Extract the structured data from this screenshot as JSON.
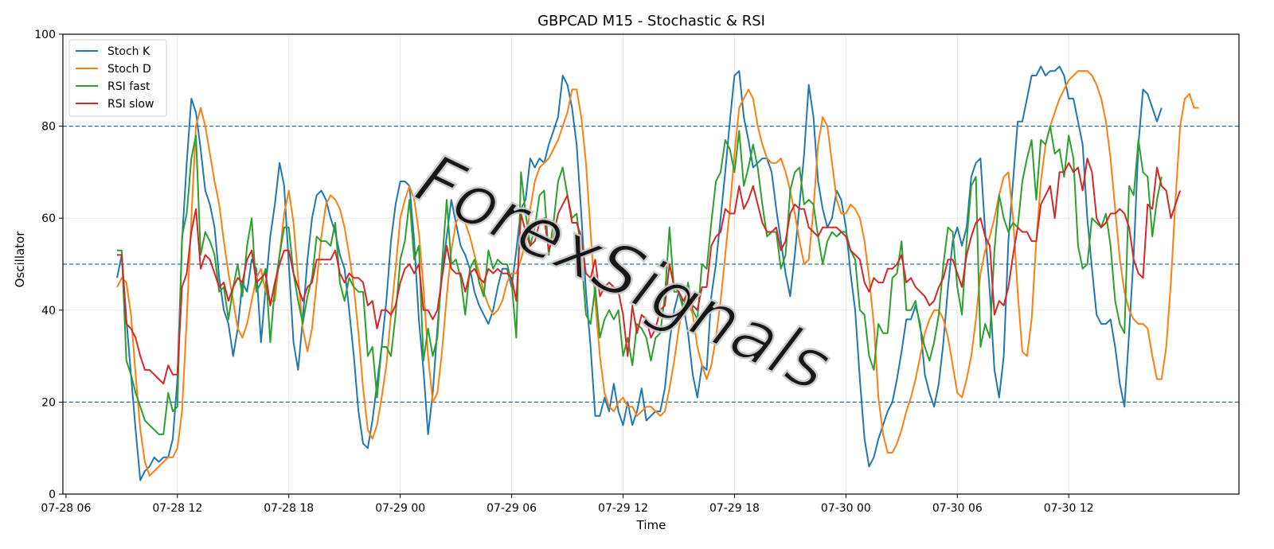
{
  "chart_data": {
    "type": "line",
    "title": "GBPCAD M15 - Stochastic & RSI",
    "xlabel": "Time",
    "ylabel": "Oscillator",
    "ylim": [
      0,
      100
    ],
    "yticks": [
      0,
      20,
      40,
      60,
      80,
      100
    ],
    "xlim": [
      "2025-07-28 05:50",
      "2025-07-30 21:10"
    ],
    "xticks": [
      {
        "t": "2025-07-28 06:00",
        "label": "07-28 06"
      },
      {
        "t": "2025-07-28 12:00",
        "label": "07-28 12"
      },
      {
        "t": "2025-07-28 18:00",
        "label": "07-28 18"
      },
      {
        "t": "2025-07-29 00:00",
        "label": "07-29 00"
      },
      {
        "t": "2025-07-29 06:00",
        "label": "07-29 06"
      },
      {
        "t": "2025-07-29 12:00",
        "label": "07-29 12"
      },
      {
        "t": "2025-07-29 18:00",
        "label": "07-29 18"
      },
      {
        "t": "2025-07-30 00:00",
        "label": "07-30 00"
      },
      {
        "t": "2025-07-30 06:00",
        "label": "07-30 06"
      },
      {
        "t": "2025-07-30 12:00",
        "label": "07-30 12"
      }
    ],
    "hlines": [
      {
        "y": 80,
        "style": "dashed",
        "color": "#1f77b4"
      },
      {
        "y": 50,
        "style": "dashed",
        "color": "#1f77b4"
      },
      {
        "y": 20,
        "style": "dashed",
        "color": "#1f77b4"
      }
    ],
    "grid": true,
    "legend_position": "top-left",
    "watermark": "ForexSignals",
    "x_start": "2025-07-28 08:45",
    "x_step_minutes": 15,
    "series": [
      {
        "name": "Stoch K",
        "color": "#1f77b4",
        "values": [
          47,
          52,
          38,
          26,
          14,
          3,
          5,
          6,
          8,
          7,
          8,
          8,
          12,
          25,
          55,
          72,
          86,
          83,
          75,
          66,
          63,
          58,
          47,
          40,
          37,
          30,
          36,
          46,
          44,
          51,
          49,
          33,
          45,
          56,
          63,
          72,
          67,
          50,
          33,
          27,
          38,
          51,
          60,
          65,
          66,
          64,
          60,
          57,
          52,
          49,
          40,
          30,
          18,
          11,
          10,
          16,
          24,
          32,
          42,
          55,
          63,
          68,
          68,
          67,
          55,
          38,
          27,
          13,
          22,
          36,
          48,
          56,
          64,
          59,
          54,
          52,
          49,
          44,
          41,
          39,
          37,
          40,
          45,
          49,
          49,
          45,
          53,
          62,
          64,
          73,
          71,
          73,
          72,
          76,
          79,
          82,
          91,
          89,
          84,
          76,
          61,
          44,
          32,
          17,
          17,
          21,
          18,
          24,
          18,
          15,
          20,
          15,
          18,
          23,
          16,
          17,
          18,
          18,
          23,
          33,
          40,
          44,
          41,
          35,
          26,
          21,
          28,
          27,
          43,
          50,
          60,
          70,
          81,
          91,
          92,
          82,
          77,
          71,
          72,
          73,
          73,
          70,
          62,
          55,
          48,
          43,
          52,
          63,
          74,
          89,
          82,
          68,
          62,
          58,
          60,
          66,
          64,
          58,
          48,
          40,
          25,
          12,
          6,
          8,
          12,
          15,
          18,
          20,
          25,
          31,
          38,
          38,
          41,
          37,
          26,
          22,
          19,
          24,
          33,
          45,
          55,
          58,
          54,
          58,
          69,
          72,
          73,
          57,
          44,
          27,
          21,
          30,
          55,
          68,
          81,
          81,
          86,
          91,
          91,
          93,
          91,
          92,
          92,
          93,
          91,
          86,
          86,
          81,
          76,
          60,
          49,
          39,
          37,
          37,
          38,
          32,
          24,
          19,
          35,
          52,
          76,
          88,
          87,
          84,
          81,
          84
        ]
      },
      {
        "name": "Stoch D",
        "color": "#ff7f0e",
        "values": [
          45,
          47,
          46,
          39,
          26,
          14,
          7,
          4,
          5,
          6,
          7,
          8,
          8,
          10,
          18,
          38,
          60,
          80,
          84,
          80,
          74,
          68,
          63,
          55,
          48,
          42,
          36,
          34,
          37,
          42,
          47,
          49,
          44,
          42,
          42,
          52,
          61,
          66,
          59,
          47,
          36,
          31,
          36,
          46,
          56,
          63,
          65,
          64,
          62,
          58,
          52,
          45,
          35,
          23,
          14,
          12,
          15,
          21,
          28,
          39,
          49,
          60,
          64,
          67,
          64,
          57,
          45,
          30,
          20,
          22,
          31,
          43,
          53,
          59,
          61,
          59,
          56,
          52,
          48,
          44,
          41,
          39,
          40,
          42,
          46,
          48,
          48,
          51,
          55,
          62,
          68,
          71,
          72,
          73,
          75,
          77,
          80,
          83,
          88,
          88,
          82,
          72,
          57,
          42,
          30,
          22,
          19,
          18,
          20,
          21,
          19,
          19,
          17,
          18,
          19,
          19,
          18,
          17,
          18,
          23,
          29,
          36,
          41,
          42,
          39,
          32,
          28,
          25,
          28,
          34,
          42,
          52,
          62,
          74,
          84,
          86,
          88,
          86,
          80,
          76,
          73,
          72,
          72,
          73,
          70,
          66,
          61,
          55,
          50,
          51,
          62,
          76,
          82,
          80,
          72,
          64,
          61,
          61,
          63,
          62,
          60,
          55,
          47,
          37,
          21,
          13,
          9,
          9,
          11,
          14,
          18,
          21,
          25,
          30,
          35,
          38,
          40,
          40,
          38,
          34,
          28,
          22,
          21,
          25,
          30,
          38,
          48,
          53,
          56,
          60,
          65,
          69,
          70,
          60,
          44,
          31,
          30,
          38,
          55,
          68,
          76,
          80,
          83,
          86,
          88,
          90,
          91,
          92,
          92,
          92,
          91,
          89,
          86,
          81,
          73,
          62,
          51,
          44,
          40,
          38,
          37,
          37,
          36,
          30,
          25,
          25,
          32,
          46,
          64,
          80,
          86,
          87,
          84,
          84
        ]
      },
      {
        "name": "RSI fast",
        "color": "#2ca02c",
        "values": [
          53,
          53,
          29,
          26,
          22,
          19,
          16,
          15,
          14,
          13,
          13,
          22,
          18,
          19,
          56,
          61,
          73,
          78,
          52,
          57,
          55,
          52,
          44,
          45,
          38,
          45,
          50,
          43,
          54,
          60,
          44,
          46,
          49,
          33,
          45,
          52,
          58,
          58,
          48,
          42,
          37,
          43,
          47,
          56,
          55,
          55,
          54,
          59,
          46,
          42,
          47,
          45,
          44,
          44,
          30,
          32,
          21,
          32,
          32,
          30,
          39,
          51,
          55,
          64,
          51,
          54,
          29,
          36,
          30,
          34,
          50,
          64,
          50,
          51,
          47,
          39,
          49,
          51,
          46,
          43,
          53,
          49,
          51,
          50,
          50,
          46,
          34,
          70,
          61,
          54,
          58,
          65,
          66,
          52,
          59,
          68,
          71,
          65,
          60,
          61,
          52,
          39,
          37,
          45,
          34,
          38,
          40,
          38,
          40,
          30,
          34,
          28,
          37,
          36,
          34,
          29,
          34,
          35,
          43,
          58,
          44,
          44,
          40,
          46,
          40,
          38,
          50,
          49,
          59,
          68,
          70,
          77,
          75,
          70,
          79,
          67,
          71,
          76,
          71,
          63,
          56,
          57,
          57,
          49,
          52,
          66,
          70,
          71,
          63,
          64,
          63,
          56,
          50,
          55,
          57,
          56,
          57,
          57,
          53,
          51,
          40,
          39,
          30,
          27,
          37,
          35,
          35,
          47,
          48,
          55,
          40,
          40,
          42,
          36,
          32,
          29,
          33,
          39,
          50,
          58,
          57,
          45,
          39,
          55,
          67,
          69,
          32,
          37,
          34,
          53,
          65,
          60,
          57,
          59,
          58,
          68,
          73,
          77,
          64,
          77,
          76,
          80,
          74,
          75,
          69,
          78,
          73,
          54,
          49,
          50,
          60,
          59,
          58,
          61,
          54,
          42,
          37,
          35,
          67,
          65,
          77,
          70,
          69,
          56,
          64,
          69
        ]
      },
      {
        "name": "RSI slow",
        "color": "#d62728",
        "values": [
          52,
          52,
          37,
          36,
          34,
          30,
          27,
          27,
          26,
          25,
          24,
          28,
          26,
          26,
          45,
          48,
          57,
          62,
          49,
          52,
          51,
          48,
          45,
          46,
          42,
          45,
          47,
          46,
          51,
          53,
          46,
          47,
          48,
          41,
          46,
          50,
          53,
          53,
          48,
          45,
          42,
          45,
          46,
          51,
          51,
          51,
          51,
          53,
          48,
          46,
          48,
          47,
          47,
          46,
          41,
          42,
          36,
          40,
          40,
          39,
          41,
          46,
          49,
          50,
          48,
          50,
          40,
          40,
          38,
          40,
          47,
          54,
          49,
          48,
          48,
          44,
          48,
          49,
          47,
          46,
          49,
          48,
          49,
          48,
          48,
          47,
          42,
          61,
          57,
          54,
          55,
          59,
          60,
          53,
          56,
          61,
          63,
          65,
          59,
          59,
          56,
          48,
          47,
          51,
          43,
          45,
          46,
          45,
          44,
          39,
          30,
          41,
          35,
          39,
          38,
          34,
          36,
          40,
          41,
          50,
          45,
          44,
          42,
          44,
          41,
          40,
          45,
          45,
          54,
          56,
          57,
          62,
          61,
          61,
          67,
          62,
          64,
          67,
          63,
          59,
          57,
          57,
          58,
          53,
          55,
          61,
          63,
          62,
          62,
          58,
          57,
          56,
          58,
          58,
          58,
          58,
          57,
          56,
          53,
          52,
          51,
          46,
          44,
          47,
          46,
          46,
          49,
          49,
          50,
          52,
          46,
          47,
          45,
          44,
          43,
          41,
          42,
          45,
          47,
          51,
          51,
          48,
          45,
          52,
          56,
          59,
          60,
          56,
          54,
          39,
          42,
          41,
          45,
          52,
          58,
          57,
          57,
          55,
          55,
          63,
          65,
          67,
          60,
          70,
          70,
          72,
          70,
          71,
          66,
          73,
          70,
          60,
          58,
          59,
          61,
          61,
          62,
          61,
          58,
          51,
          48,
          47,
          63,
          62,
          71,
          67,
          66,
          60,
          63,
          66
        ]
      }
    ]
  }
}
